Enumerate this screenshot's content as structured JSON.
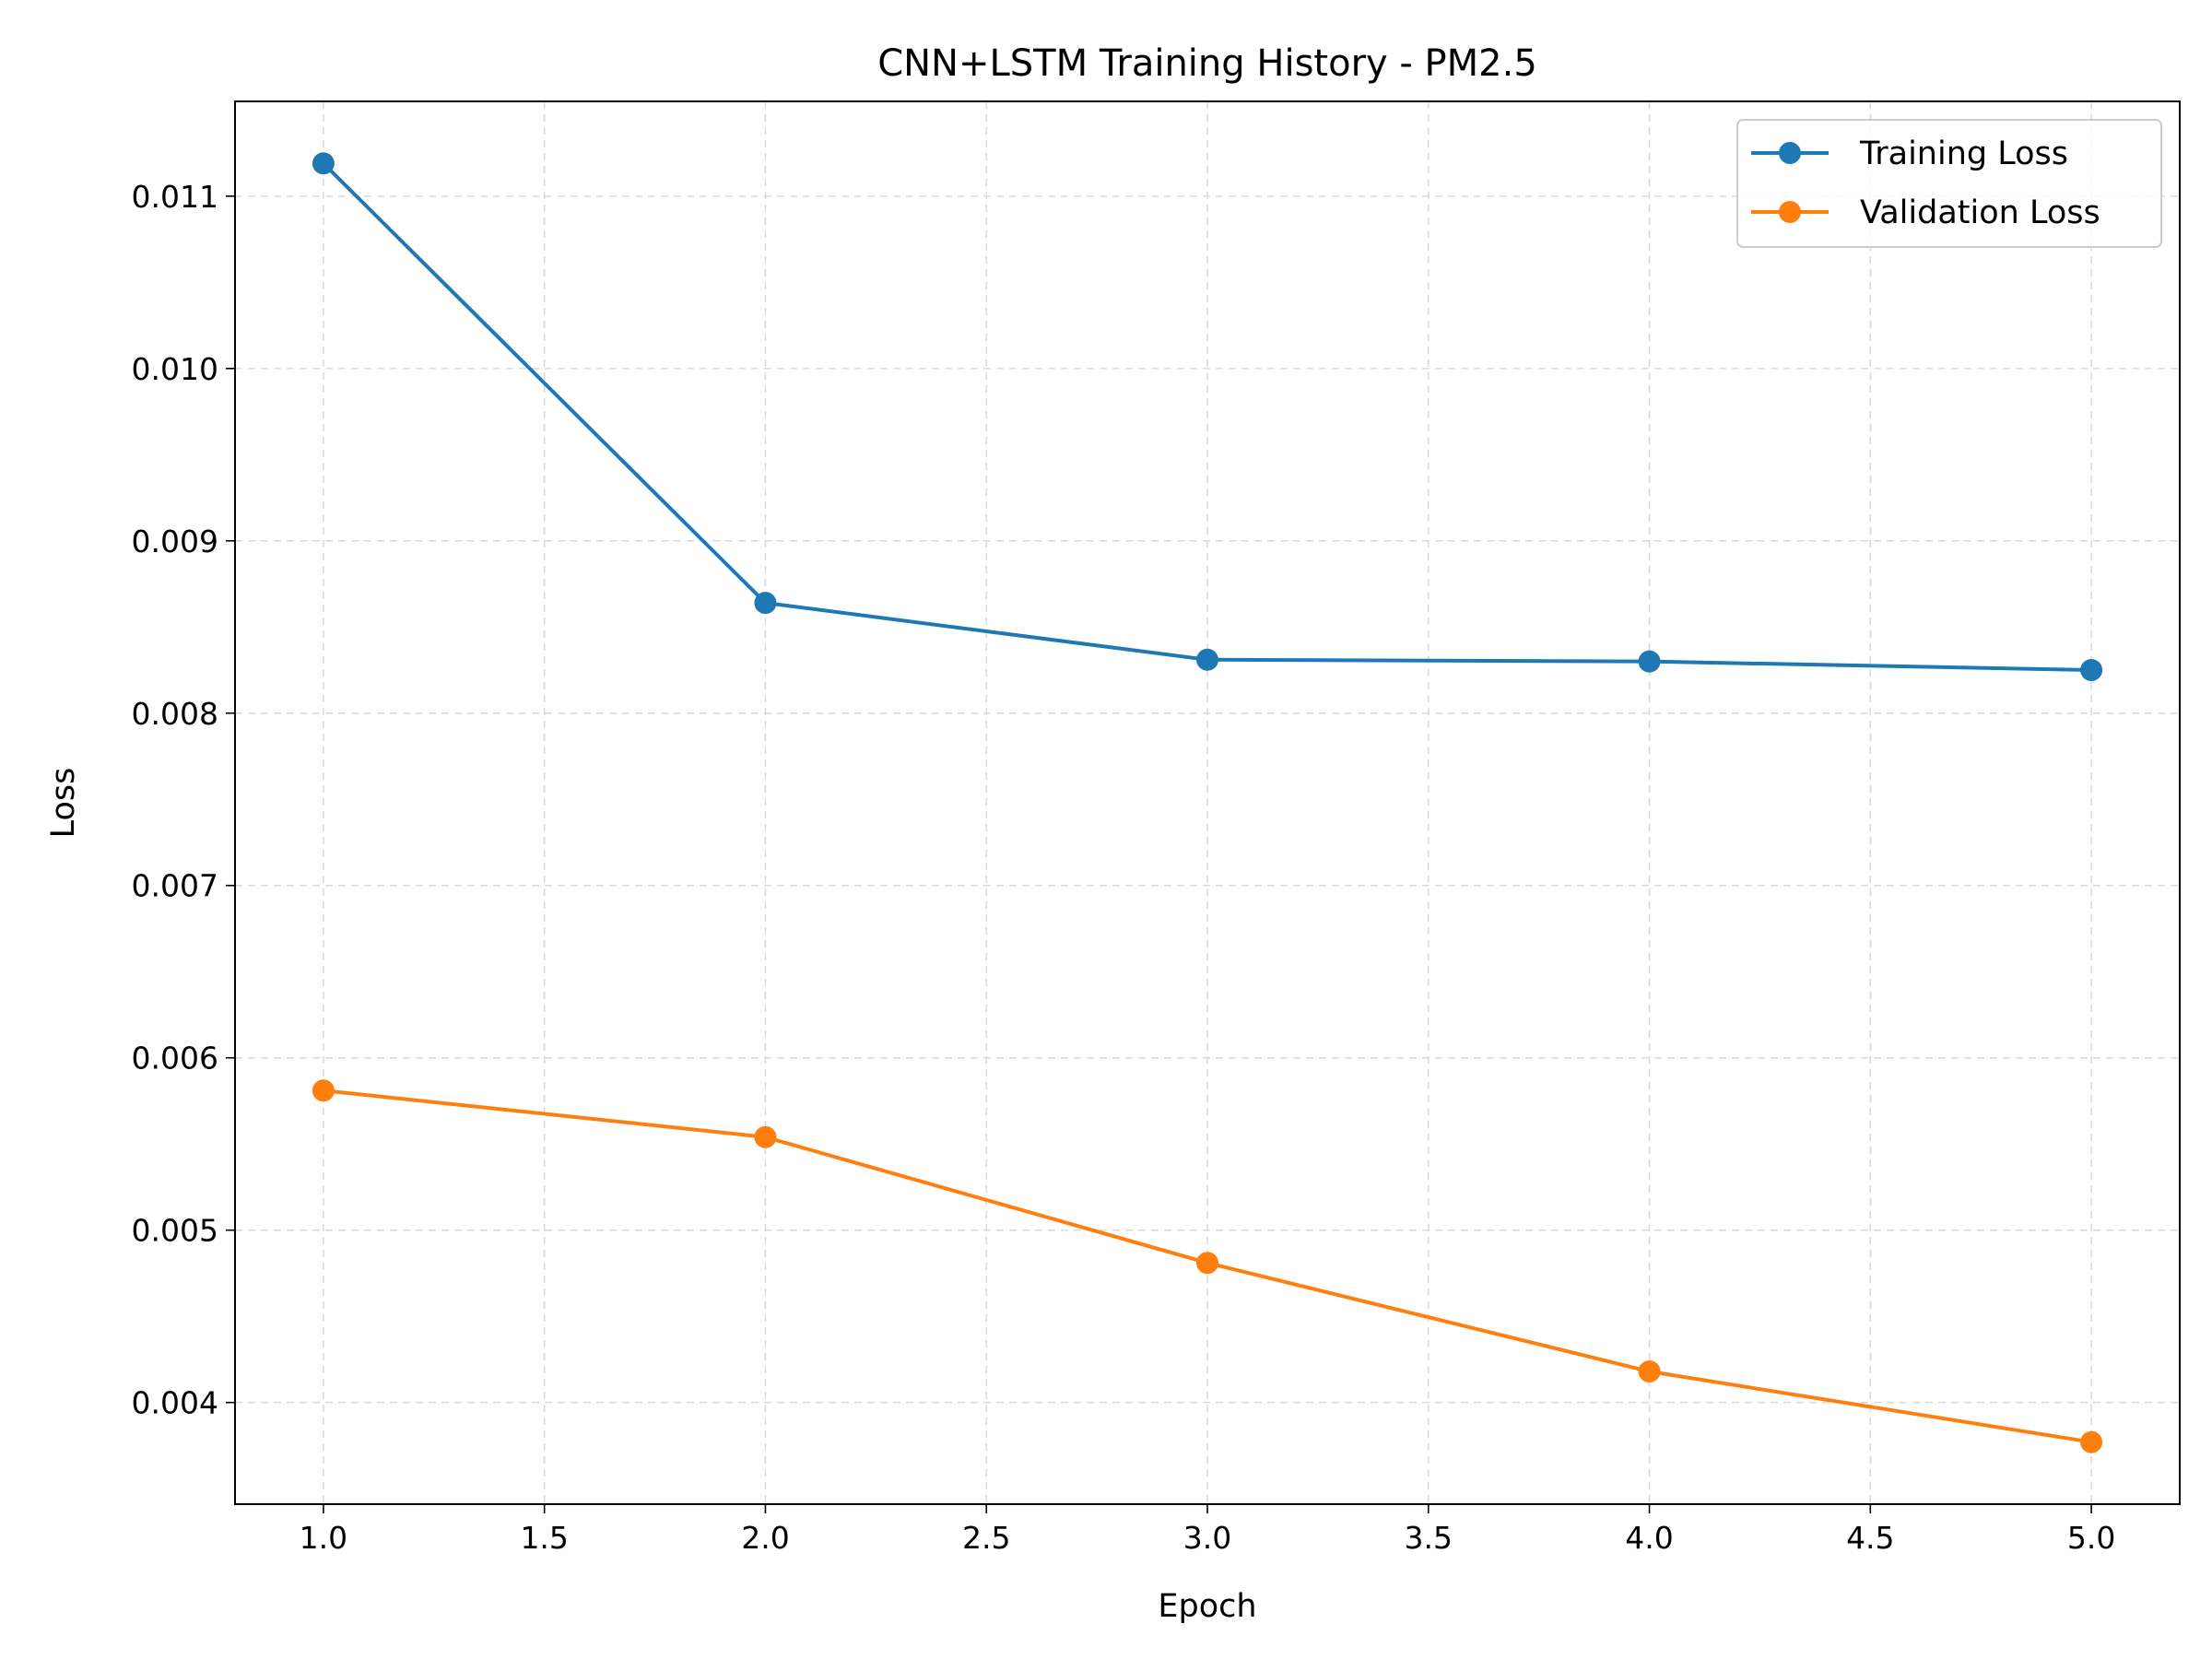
{
  "chart_data": {
    "type": "line",
    "title": "CNN+LSTM Training History - PM2.5",
    "xlabel": "Epoch",
    "ylabel": "Loss",
    "x": [
      1,
      2,
      3,
      4,
      5
    ],
    "xlim": [
      0.8,
      5.2
    ],
    "ylim": [
      0.00341,
      0.01155
    ],
    "xticks": [
      1.0,
      1.5,
      2.0,
      2.5,
      3.0,
      3.5,
      4.0,
      4.5,
      5.0
    ],
    "xtick_labels": [
      "1.0",
      "1.5",
      "2.0",
      "2.5",
      "3.0",
      "3.5",
      "4.0",
      "4.5",
      "5.0"
    ],
    "yticks": [
      0.004,
      0.005,
      0.006,
      0.007,
      0.008,
      0.009,
      0.01,
      0.011
    ],
    "ytick_labels": [
      "0.004",
      "0.005",
      "0.006",
      "0.007",
      "0.008",
      "0.009",
      "0.010",
      "0.011"
    ],
    "grid": true,
    "legend_position": "top-right",
    "series": [
      {
        "name": "Training Loss",
        "color": "#1f77b4",
        "values": [
          0.01119,
          0.00864,
          0.00831,
          0.0083,
          0.00825
        ]
      },
      {
        "name": "Validation Loss",
        "color": "#ff7f0e",
        "values": [
          0.00581,
          0.00554,
          0.00481,
          0.00418,
          0.00377
        ]
      }
    ]
  }
}
